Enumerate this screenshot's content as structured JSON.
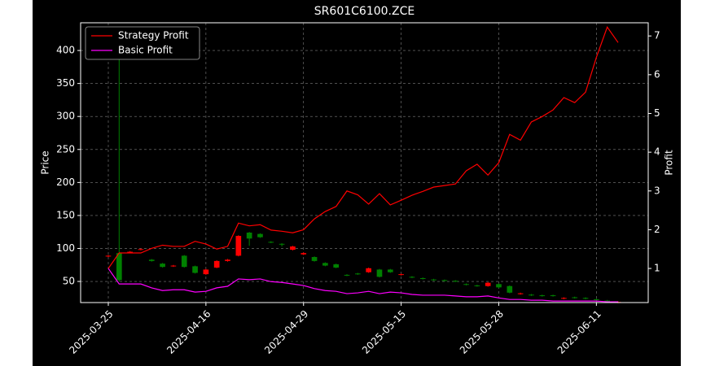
{
  "chart_data": {
    "type": "candlestick",
    "title": "SR601C6100.ZCE",
    "ylabel": "Price",
    "y2label": "Profit",
    "categories": [
      "2025-03-25",
      null,
      null,
      null,
      null,
      null,
      null,
      null,
      null,
      "2025-04-16",
      null,
      null,
      null,
      null,
      null,
      null,
      null,
      null,
      "2025-04-29",
      null,
      null,
      null,
      null,
      null,
      null,
      null,
      null,
      "2025-05-15",
      null,
      null,
      null,
      null,
      null,
      null,
      null,
      null,
      "2025-05-28",
      null,
      null,
      null,
      null,
      null,
      null,
      null,
      null,
      "2025-06-11",
      null,
      null
    ],
    "candles": {
      "up_color": "#ff0000",
      "down_color": "#008000",
      "open": [
        88,
        93,
        94,
        98,
        83,
        77,
        73,
        89,
        73,
        61,
        71,
        81,
        89,
        124,
        122,
        110,
        107,
        98,
        91,
        87,
        78,
        76,
        60,
        62,
        64,
        68,
        68,
        60,
        57,
        55,
        53,
        52,
        51,
        46,
        44,
        43,
        46,
        43,
        31,
        30,
        29,
        29,
        24,
        26,
        25,
        23,
        21,
        18
      ],
      "high": [
        90,
        421,
        96,
        100,
        84,
        78,
        75,
        90,
        74,
        69,
        82,
        84,
        120,
        125,
        123,
        111,
        108,
        104,
        94,
        88,
        79,
        77,
        61,
        63,
        71,
        69,
        69,
        62,
        58,
        56,
        54,
        53,
        52,
        47,
        45,
        49,
        47,
        44,
        33,
        31,
        30,
        30,
        26,
        27,
        26,
        24,
        22,
        20
      ],
      "low": [
        87,
        50,
        93,
        97,
        80,
        71,
        72,
        71,
        62,
        60,
        70,
        80,
        88,
        104,
        116,
        108,
        103,
        97,
        90,
        80,
        73,
        70,
        58,
        60,
        63,
        56,
        63,
        59,
        55,
        53,
        51,
        50,
        49,
        44,
        42,
        42,
        40,
        32,
        30,
        28,
        27,
        27,
        23,
        24,
        23,
        21,
        19,
        17
      ],
      "close": [
        89,
        52,
        95,
        99,
        81,
        72,
        74,
        72,
        63,
        68,
        81,
        83,
        119,
        115,
        117,
        109,
        106,
        103,
        93,
        81,
        74,
        71,
        59,
        61,
        70,
        57,
        64,
        61,
        56,
        54,
        52,
        51,
        50,
        45,
        43,
        48,
        41,
        33,
        32,
        29,
        28,
        28,
        25,
        25,
        24,
        22,
        20,
        19
      ]
    },
    "series": [
      {
        "name": "Strategy Profit",
        "color": "#ff0000",
        "axis": "y2",
        "values": [
          1.0,
          1.4,
          1.4,
          1.4,
          1.52,
          1.6,
          1.57,
          1.57,
          1.7,
          1.63,
          1.5,
          1.57,
          2.17,
          2.1,
          2.13,
          1.99,
          1.96,
          1.92,
          2.0,
          2.28,
          2.47,
          2.6,
          3.0,
          2.9,
          2.66,
          2.93,
          2.64,
          2.76,
          2.89,
          2.99,
          3.1,
          3.14,
          3.18,
          3.52,
          3.69,
          3.41,
          3.73,
          4.46,
          4.31,
          4.78,
          4.92,
          5.09,
          5.41,
          5.28,
          5.55,
          6.45,
          7.23,
          6.83
        ]
      },
      {
        "name": "Basic Profit",
        "color": "#ff00ff",
        "axis": "y2",
        "values": [
          1.0,
          0.6,
          0.6,
          0.6,
          0.5,
          0.43,
          0.45,
          0.45,
          0.39,
          0.41,
          0.5,
          0.54,
          0.73,
          0.71,
          0.73,
          0.66,
          0.64,
          0.6,
          0.56,
          0.48,
          0.43,
          0.41,
          0.35,
          0.37,
          0.41,
          0.35,
          0.39,
          0.37,
          0.33,
          0.31,
          0.31,
          0.31,
          0.29,
          0.27,
          0.27,
          0.29,
          0.24,
          0.2,
          0.2,
          0.18,
          0.18,
          0.16,
          0.16,
          0.16,
          0.16,
          0.16,
          0.14,
          0.14
        ]
      }
    ],
    "ylim": [
      18,
      442
    ],
    "yticks": [
      50,
      100,
      150,
      200,
      250,
      300,
      350,
      400
    ],
    "y2lim": [
      0.12,
      7.34
    ],
    "y2ticks": [
      1,
      2,
      3,
      4,
      5,
      6,
      7
    ],
    "grid": true,
    "legend": "upper left"
  }
}
